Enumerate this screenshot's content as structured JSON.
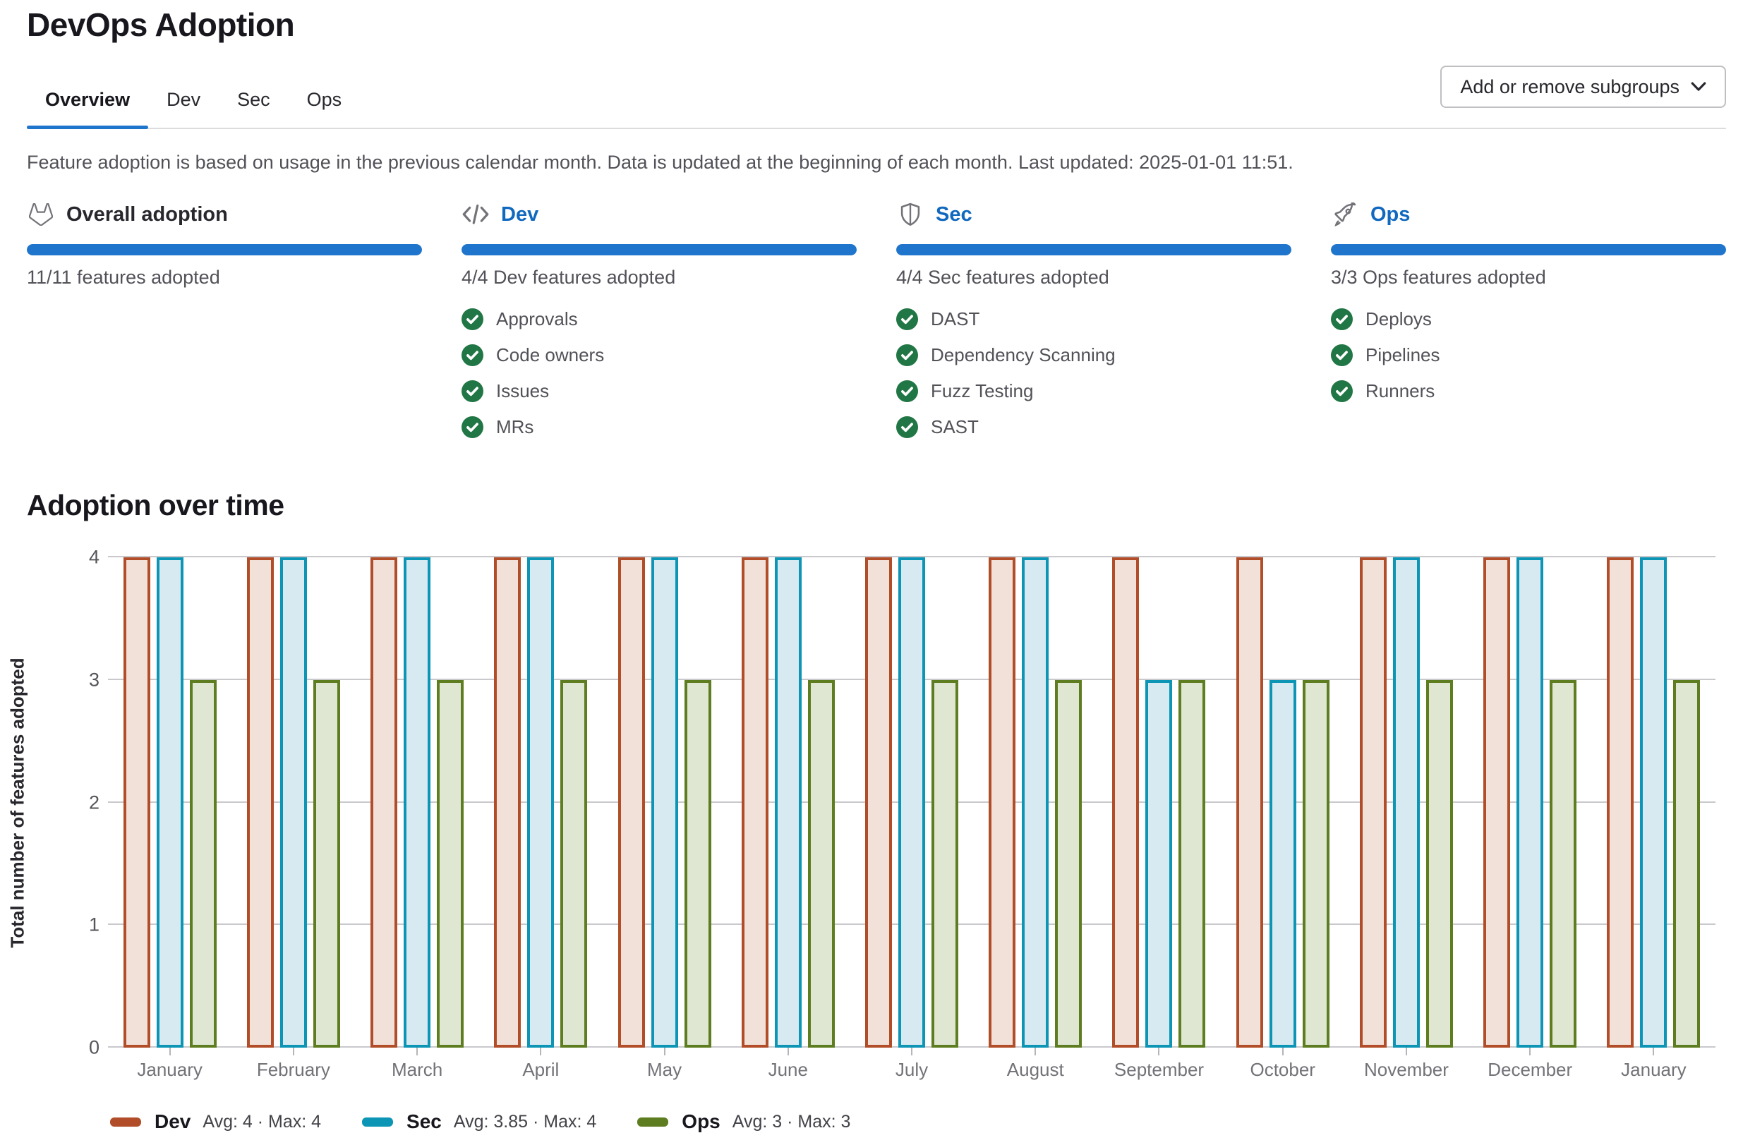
{
  "page": {
    "title": "DevOps Adoption"
  },
  "tabs": [
    {
      "label": "Overview",
      "active": true
    },
    {
      "label": "Dev",
      "active": false
    },
    {
      "label": "Sec",
      "active": false
    },
    {
      "label": "Ops",
      "active": false
    }
  ],
  "toolbar": {
    "subgroups_button_label": "Add or remove subgroups"
  },
  "info_text": "Feature adoption is based on usage in the previous calendar month. Data is updated at the beginning of each month. Last updated: 2025-01-01 11:51.",
  "cards": [
    {
      "title": "Overall adoption",
      "icon": "tanuki-icon",
      "is_link": false,
      "progress_percent": 100,
      "subtitle": "11/11 features adopted",
      "features": []
    },
    {
      "title": "Dev",
      "icon": "code-icon",
      "is_link": true,
      "progress_percent": 100,
      "subtitle": "4/4 Dev features adopted",
      "features": [
        "Approvals",
        "Code owners",
        "Issues",
        "MRs"
      ]
    },
    {
      "title": "Sec",
      "icon": "shield-icon",
      "is_link": true,
      "progress_percent": 100,
      "subtitle": "4/4 Sec features adopted",
      "features": [
        "DAST",
        "Dependency Scanning",
        "Fuzz Testing",
        "SAST"
      ]
    },
    {
      "title": "Ops",
      "icon": "rocket-icon",
      "is_link": true,
      "progress_percent": 100,
      "subtitle": "3/3 Ops features adopted",
      "features": [
        "Deploys",
        "Pipelines",
        "Runners"
      ]
    }
  ],
  "chart_section": {
    "title": "Adoption over time"
  },
  "chart_data": {
    "type": "bar",
    "title": "Adoption over time",
    "categories": [
      "January",
      "February",
      "March",
      "April",
      "May",
      "June",
      "July",
      "August",
      "September",
      "October",
      "November",
      "December",
      "January"
    ],
    "series": [
      {
        "name": "Dev",
        "values": [
          4,
          4,
          4,
          4,
          4,
          4,
          4,
          4,
          4,
          4,
          4,
          4,
          4
        ],
        "color": "#b14e29",
        "fill": "#f2e1d8",
        "legend_stats": "Avg: 4 · Max: 4"
      },
      {
        "name": "Sec",
        "values": [
          4,
          4,
          4,
          4,
          4,
          4,
          4,
          4,
          3,
          3,
          4,
          4,
          4
        ],
        "color": "#0d95b5",
        "fill": "#d7eaf1",
        "legend_stats": "Avg: 3.85 · Max: 4"
      },
      {
        "name": "Ops",
        "values": [
          3,
          3,
          3,
          3,
          3,
          3,
          3,
          3,
          3,
          3,
          3,
          3,
          3
        ],
        "color": "#5d7d20",
        "fill": "#dfe7d3",
        "legend_stats": "Avg: 3 · Max: 3"
      }
    ],
    "xlabel": "",
    "ylabel": "Total number of features adopted",
    "ylim": [
      0,
      4
    ],
    "yticks": [
      0,
      1,
      2,
      3,
      4
    ],
    "grid": true,
    "legend_position": "bottom"
  },
  "colors": {
    "accent_blue": "#1f75cb",
    "link_blue": "#1068bf",
    "check_green": "#217645",
    "icon_gray": "#737278",
    "gridline_gray": "#c9c9cd",
    "dev_series": "#b14e29",
    "sec_series": "#0d95b5",
    "ops_series": "#5d7d20"
  }
}
